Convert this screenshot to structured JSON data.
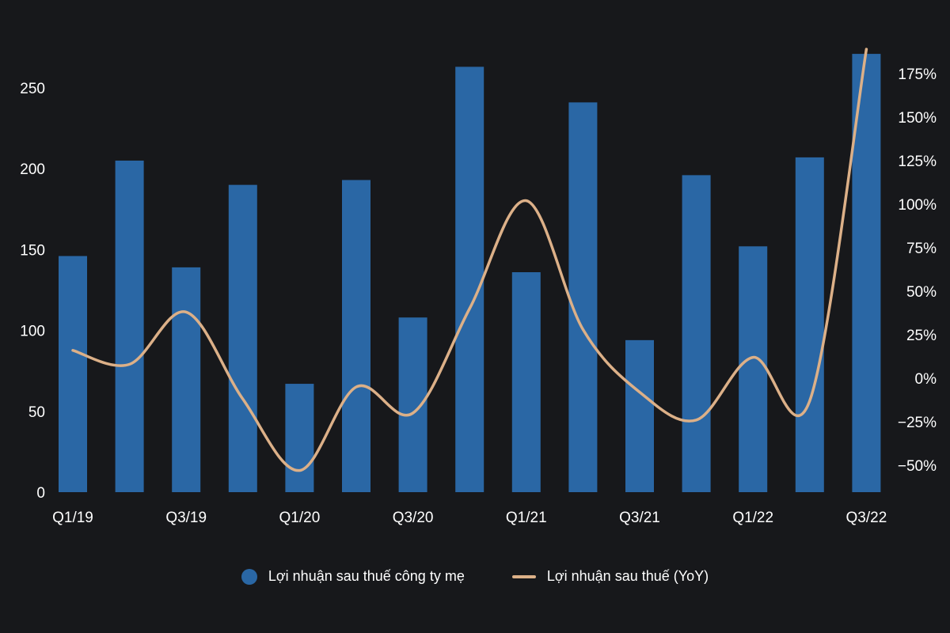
{
  "colors": {
    "background": "#17181b",
    "bar": "#2a67a5",
    "line": "#dcb088",
    "text": "#ffffff"
  },
  "chart_data": {
    "type": "bar",
    "categories": [
      "Q1/19",
      "Q2/19",
      "Q3/19",
      "Q4/19",
      "Q1/20",
      "Q2/20",
      "Q3/20",
      "Q4/20",
      "Q1/21",
      "Q2/21",
      "Q3/21",
      "Q4/21",
      "Q1/22",
      "Q2/22",
      "Q3/22"
    ],
    "x_tick_labels": [
      "Q1/19",
      "Q3/19",
      "Q1/20",
      "Q3/20",
      "Q1/21",
      "Q3/21",
      "Q1/22",
      "Q3/22"
    ],
    "series": [
      {
        "name": "Lợi nhuận sau thuế công ty mẹ",
        "type": "bar",
        "axis": "left",
        "values": [
          146,
          205,
          139,
          190,
          67,
          193,
          108,
          263,
          136,
          241,
          94,
          196,
          152,
          207,
          271
        ]
      },
      {
        "name": "Lợi nhuận sau thuế (YoY)",
        "type": "line",
        "axis": "right",
        "unit": "%",
        "values": [
          16,
          8,
          38,
          -12,
          -53,
          -5,
          -20,
          40,
          102,
          28,
          -8,
          -24,
          12,
          -13,
          189
        ]
      }
    ],
    "y_left": {
      "min": 0,
      "max": 275,
      "ticks": [
        0,
        50,
        100,
        150,
        200,
        250
      ]
    },
    "y_right": {
      "min": -65,
      "max": 190,
      "ticks": [
        -50,
        -25,
        0,
        25,
        50,
        75,
        100,
        125,
        150,
        175
      ],
      "tick_format": "%"
    },
    "legend_position": "bottom",
    "grid": false
  },
  "legend": {
    "bar_label": "Lợi nhuận sau thuế công ty mẹ",
    "line_label": "Lợi nhuận sau thuế (YoY)"
  }
}
